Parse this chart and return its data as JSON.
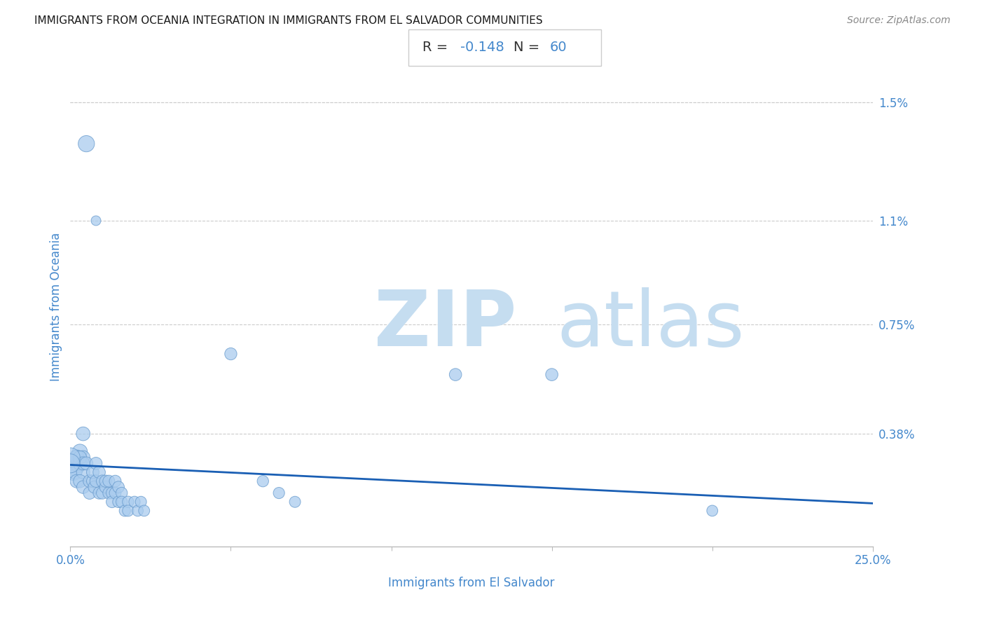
{
  "title": "IMMIGRANTS FROM OCEANIA INTEGRATION IN IMMIGRANTS FROM EL SALVADOR COMMUNITIES",
  "source": "Source: ZipAtlas.com",
  "xlabel": "Immigrants from El Salvador",
  "ylabel": "Immigrants from Oceania",
  "xlim": [
    0.0,
    0.25
  ],
  "ylim": [
    0.0,
    0.0162
  ],
  "xtick_labels": [
    "0.0%",
    "25.0%"
  ],
  "xtick_positions": [
    0.0,
    0.25
  ],
  "ytick_labels": [
    "1.5%",
    "1.1%",
    "0.75%",
    "0.38%"
  ],
  "ytick_positions": [
    0.015,
    0.011,
    0.0075,
    0.0038
  ],
  "annotation_r_val": "-0.148",
  "n_value": 60,
  "regression_start_x": 0.0,
  "regression_start_y": 0.00275,
  "regression_end_x": 0.25,
  "regression_end_y": 0.00145,
  "scatter_color": "#aaccee",
  "scatter_edge_color": "#6699cc",
  "regression_color": "#1a5fb4",
  "title_color": "#1a1a1a",
  "axis_label_color": "#4488cc",
  "tick_label_color": "#4488cc",
  "watermark_zip_color": "#c5ddf0",
  "watermark_atlas_color": "#c5ddf0",
  "points": [
    [
      0.005,
      0.0136
    ],
    [
      0.008,
      0.011
    ],
    [
      0.004,
      0.0038
    ],
    [
      0.001,
      0.00285
    ],
    [
      0.0015,
      0.00265
    ],
    [
      0.001,
      0.0025
    ],
    [
      0.002,
      0.003
    ],
    [
      0.0025,
      0.00275
    ],
    [
      0.003,
      0.0032
    ],
    [
      0.002,
      0.003
    ],
    [
      0.003,
      0.0028
    ],
    [
      0.0015,
      0.0025
    ],
    [
      0.002,
      0.0022
    ],
    [
      0.003,
      0.0028
    ],
    [
      0.004,
      0.003
    ],
    [
      0.003,
      0.003
    ],
    [
      0.004,
      0.0025
    ],
    [
      0.004,
      0.0028
    ],
    [
      0.003,
      0.0022
    ],
    [
      0.004,
      0.002
    ],
    [
      0.005,
      0.0028
    ],
    [
      0.006,
      0.0022
    ],
    [
      0.006,
      0.0018
    ],
    [
      0.007,
      0.0022
    ],
    [
      0.007,
      0.0025
    ],
    [
      0.0075,
      0.002
    ],
    [
      0.008,
      0.0028
    ],
    [
      0.008,
      0.0022
    ],
    [
      0.009,
      0.0018
    ],
    [
      0.009,
      0.0025
    ],
    [
      0.01,
      0.0022
    ],
    [
      0.01,
      0.0018
    ],
    [
      0.011,
      0.002
    ],
    [
      0.011,
      0.0022
    ],
    [
      0.012,
      0.0018
    ],
    [
      0.012,
      0.0022
    ],
    [
      0.013,
      0.0018
    ],
    [
      0.013,
      0.0015
    ],
    [
      0.014,
      0.0022
    ],
    [
      0.014,
      0.0018
    ],
    [
      0.015,
      0.002
    ],
    [
      0.015,
      0.0015
    ],
    [
      0.016,
      0.0018
    ],
    [
      0.016,
      0.0015
    ],
    [
      0.017,
      0.0012
    ],
    [
      0.018,
      0.0015
    ],
    [
      0.018,
      0.0012
    ],
    [
      0.02,
      0.0015
    ],
    [
      0.021,
      0.0012
    ],
    [
      0.022,
      0.0015
    ],
    [
      0.023,
      0.0012
    ],
    [
      0.05,
      0.0065
    ],
    [
      0.12,
      0.0058
    ],
    [
      0.15,
      0.0058
    ],
    [
      0.06,
      0.0022
    ],
    [
      0.065,
      0.0018
    ],
    [
      0.07,
      0.0015
    ],
    [
      0.2,
      0.0012
    ],
    [
      0.0,
      0.003
    ],
    [
      0.0,
      0.0028
    ]
  ],
  "point_sizes": [
    280,
    100,
    200,
    320,
    300,
    280,
    250,
    240,
    230,
    220,
    210,
    200,
    190,
    200,
    200,
    190,
    185,
    185,
    180,
    175,
    180,
    170,
    165,
    165,
    165,
    160,
    160,
    160,
    155,
    160,
    158,
    155,
    155,
    155,
    150,
    150,
    148,
    145,
    148,
    145,
    145,
    142,
    140,
    138,
    135,
    138,
    135,
    135,
    130,
    132,
    130,
    155,
    160,
    160,
    138,
    135,
    132,
    128,
    400,
    380
  ]
}
